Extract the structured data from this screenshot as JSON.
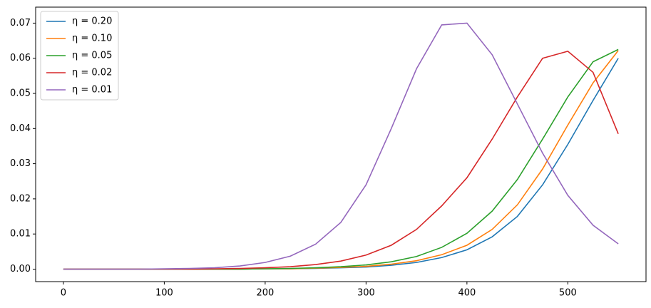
{
  "chart_data": {
    "type": "line",
    "x": [
      0,
      25,
      50,
      75,
      100,
      125,
      150,
      175,
      200,
      225,
      250,
      275,
      300,
      325,
      350,
      375,
      400,
      425,
      450,
      475,
      500,
      525,
      550
    ],
    "series": [
      {
        "name": "η = 0.20",
        "color": "#1f77b4",
        "values": [
          0,
          0,
          0,
          0,
          0,
          0,
          0,
          0,
          0.0001,
          0.0001,
          0.0002,
          0.0004,
          0.0006,
          0.0011,
          0.0019,
          0.0033,
          0.0055,
          0.0092,
          0.015,
          0.024,
          0.0355,
          0.048,
          0.06
        ]
      },
      {
        "name": "η = 0.10",
        "color": "#ff7f0e",
        "values": [
          0,
          0,
          0,
          0,
          0,
          0,
          0,
          0,
          0.0001,
          0.0001,
          0.0003,
          0.0005,
          0.0008,
          0.0014,
          0.0024,
          0.0041,
          0.0068,
          0.0113,
          0.0183,
          0.0285,
          0.041,
          0.053,
          0.0622
        ]
      },
      {
        "name": "η = 0.05",
        "color": "#2ca02c",
        "values": [
          0,
          0,
          0,
          0,
          0,
          0,
          0,
          0,
          0.0001,
          0.0002,
          0.0004,
          0.0007,
          0.0012,
          0.0021,
          0.0036,
          0.0062,
          0.0102,
          0.0165,
          0.0255,
          0.037,
          0.049,
          0.059,
          0.0625
        ]
      },
      {
        "name": "η = 0.02",
        "color": "#d62728",
        "values": [
          0,
          0,
          0,
          0,
          0,
          0,
          0.0001,
          0.0002,
          0.0004,
          0.0007,
          0.0013,
          0.0023,
          0.004,
          0.0068,
          0.0113,
          0.018,
          0.026,
          0.037,
          0.049,
          0.06,
          0.062,
          0.056,
          0.0385
        ]
      },
      {
        "name": "η = 0.01",
        "color": "#9467bd",
        "values": [
          0,
          0,
          0,
          0,
          0.0001,
          0.0002,
          0.0004,
          0.0009,
          0.0019,
          0.0037,
          0.0071,
          0.0133,
          0.024,
          0.04,
          0.057,
          0.0695,
          0.07,
          0.061,
          0.047,
          0.033,
          0.021,
          0.0125,
          0.0072
        ]
      }
    ],
    "xlim": [
      -27.5,
      577.5
    ],
    "xticks": [
      0,
      100,
      200,
      300,
      400,
      500
    ],
    "ylim": [
      -0.00355,
      0.07455
    ],
    "yticks": [
      {
        "value": 0,
        "label": "0.00"
      },
      0.01,
      0.02,
      0.03,
      0.04,
      0.05,
      0.06,
      0.07
    ],
    "legend": "upper left"
  }
}
